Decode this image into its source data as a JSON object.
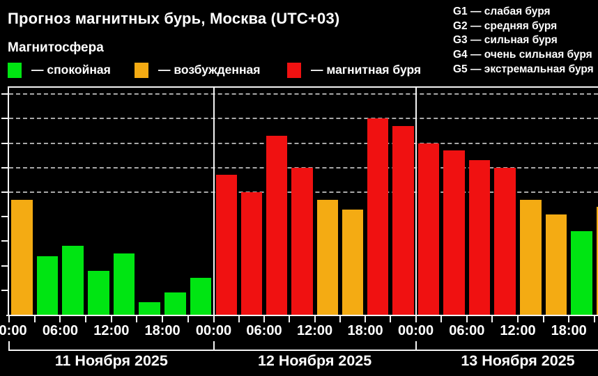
{
  "header": {
    "title": "Прогноз магнитных бурь, Москва (UTC+03)",
    "subtitle": "Магнитосфера"
  },
  "legend": {
    "items": [
      {
        "key": "calm",
        "label": "— спокойная",
        "color": "#00E512"
      },
      {
        "key": "excited",
        "label": "— возбужденная",
        "color": "#F4AB13"
      },
      {
        "key": "storm",
        "label": "— магнитная буря",
        "color": "#F01111"
      }
    ]
  },
  "g_scale": {
    "separator": " — ",
    "items": [
      {
        "code": "G1",
        "label": "слабая буря"
      },
      {
        "code": "G2",
        "label": "средняя буря"
      },
      {
        "code": "G3",
        "label": "сильная буря"
      },
      {
        "code": "G4",
        "label": "очень сильная буря"
      },
      {
        "code": "G5",
        "label": "экстремальная буря"
      }
    ]
  },
  "chart_data": {
    "type": "bar",
    "title": "Прогноз магнитных бурь, Москва (UTC+03)",
    "interval_hours": 3,
    "ylim": [
      0,
      9.3
    ],
    "grid_levels": [
      5,
      6,
      7,
      8,
      9
    ],
    "grid_style": "dashed",
    "legend_position": "top-left",
    "x_tick_labels": [
      "00:00",
      "06:00",
      "12:00",
      "18:00"
    ],
    "colors": {
      "calm": "#00E512",
      "excited": "#F4AB13",
      "storm": "#F01111"
    },
    "days": [
      {
        "date": "11 Ноября 2025",
        "values": [
          4.7,
          2.4,
          2.8,
          1.8,
          2.5,
          0.5,
          0.9,
          1.5
        ],
        "states": [
          "excited",
          "calm",
          "calm",
          "calm",
          "calm",
          "calm",
          "calm",
          "calm"
        ]
      },
      {
        "date": "12 Ноября 2025",
        "values": [
          5.7,
          5.0,
          7.3,
          6.0,
          4.7,
          4.3,
          8.0,
          7.7
        ],
        "states": [
          "storm",
          "storm",
          "storm",
          "storm",
          "excited",
          "excited",
          "storm",
          "storm"
        ]
      },
      {
        "date": "13 Ноября 2025",
        "values": [
          7.0,
          6.7,
          6.3,
          6.0,
          4.7,
          4.1,
          3.4,
          4.4
        ],
        "states": [
          "storm",
          "storm",
          "storm",
          "storm",
          "excited",
          "excited",
          "calm",
          "excited"
        ]
      }
    ]
  }
}
